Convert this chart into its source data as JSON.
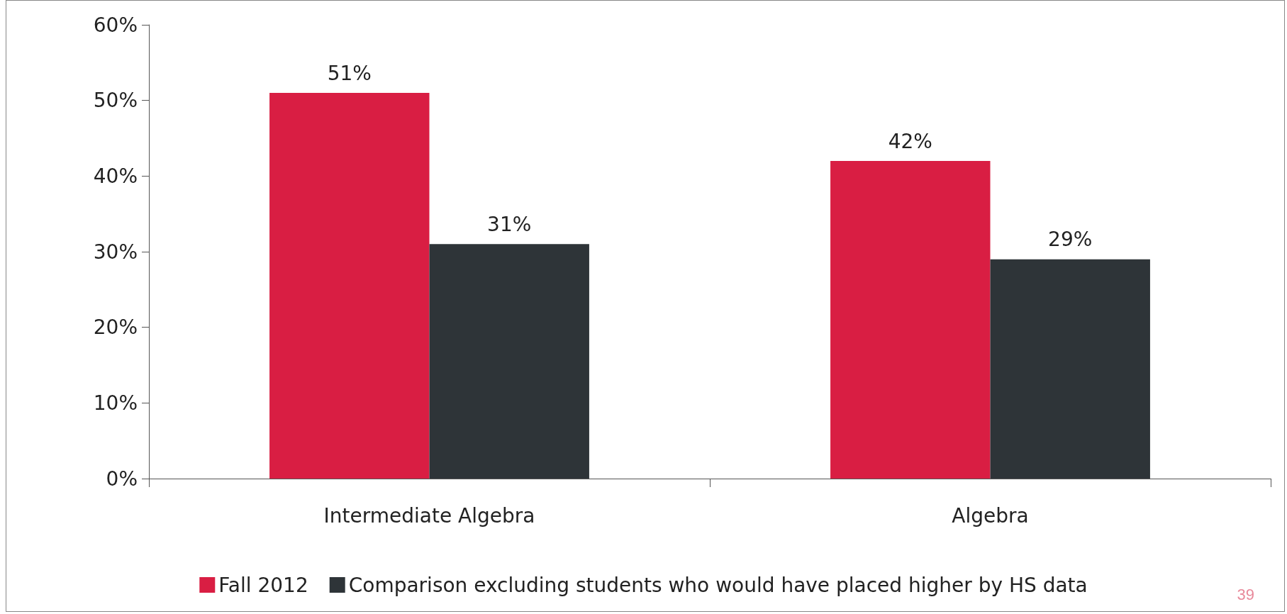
{
  "chart_data": {
    "type": "bar",
    "categories": [
      "Intermediate Algebra",
      "Algebra"
    ],
    "series": [
      {
        "name": "Fall 2012",
        "color": "#d91e43",
        "values": [
          51,
          42
        ],
        "value_labels": [
          "51%",
          "42%"
        ]
      },
      {
        "name": "Comparison excluding students who would have placed higher by HS data",
        "color": "#2e3438",
        "values": [
          31,
          29
        ],
        "value_labels": [
          "31%",
          "29%"
        ]
      }
    ],
    "ylim": [
      0,
      60
    ],
    "yticks": [
      {
        "value": 0,
        "label": "0%"
      },
      {
        "value": 10,
        "label": "10%"
      },
      {
        "value": 20,
        "label": "20%"
      },
      {
        "value": 30,
        "label": "30%"
      },
      {
        "value": 40,
        "label": "40%"
      },
      {
        "value": 50,
        "label": "50%"
      },
      {
        "value": 60,
        "label": "60%"
      }
    ],
    "grid": false,
    "legend": "bottom",
    "annotations": [
      "39"
    ]
  }
}
